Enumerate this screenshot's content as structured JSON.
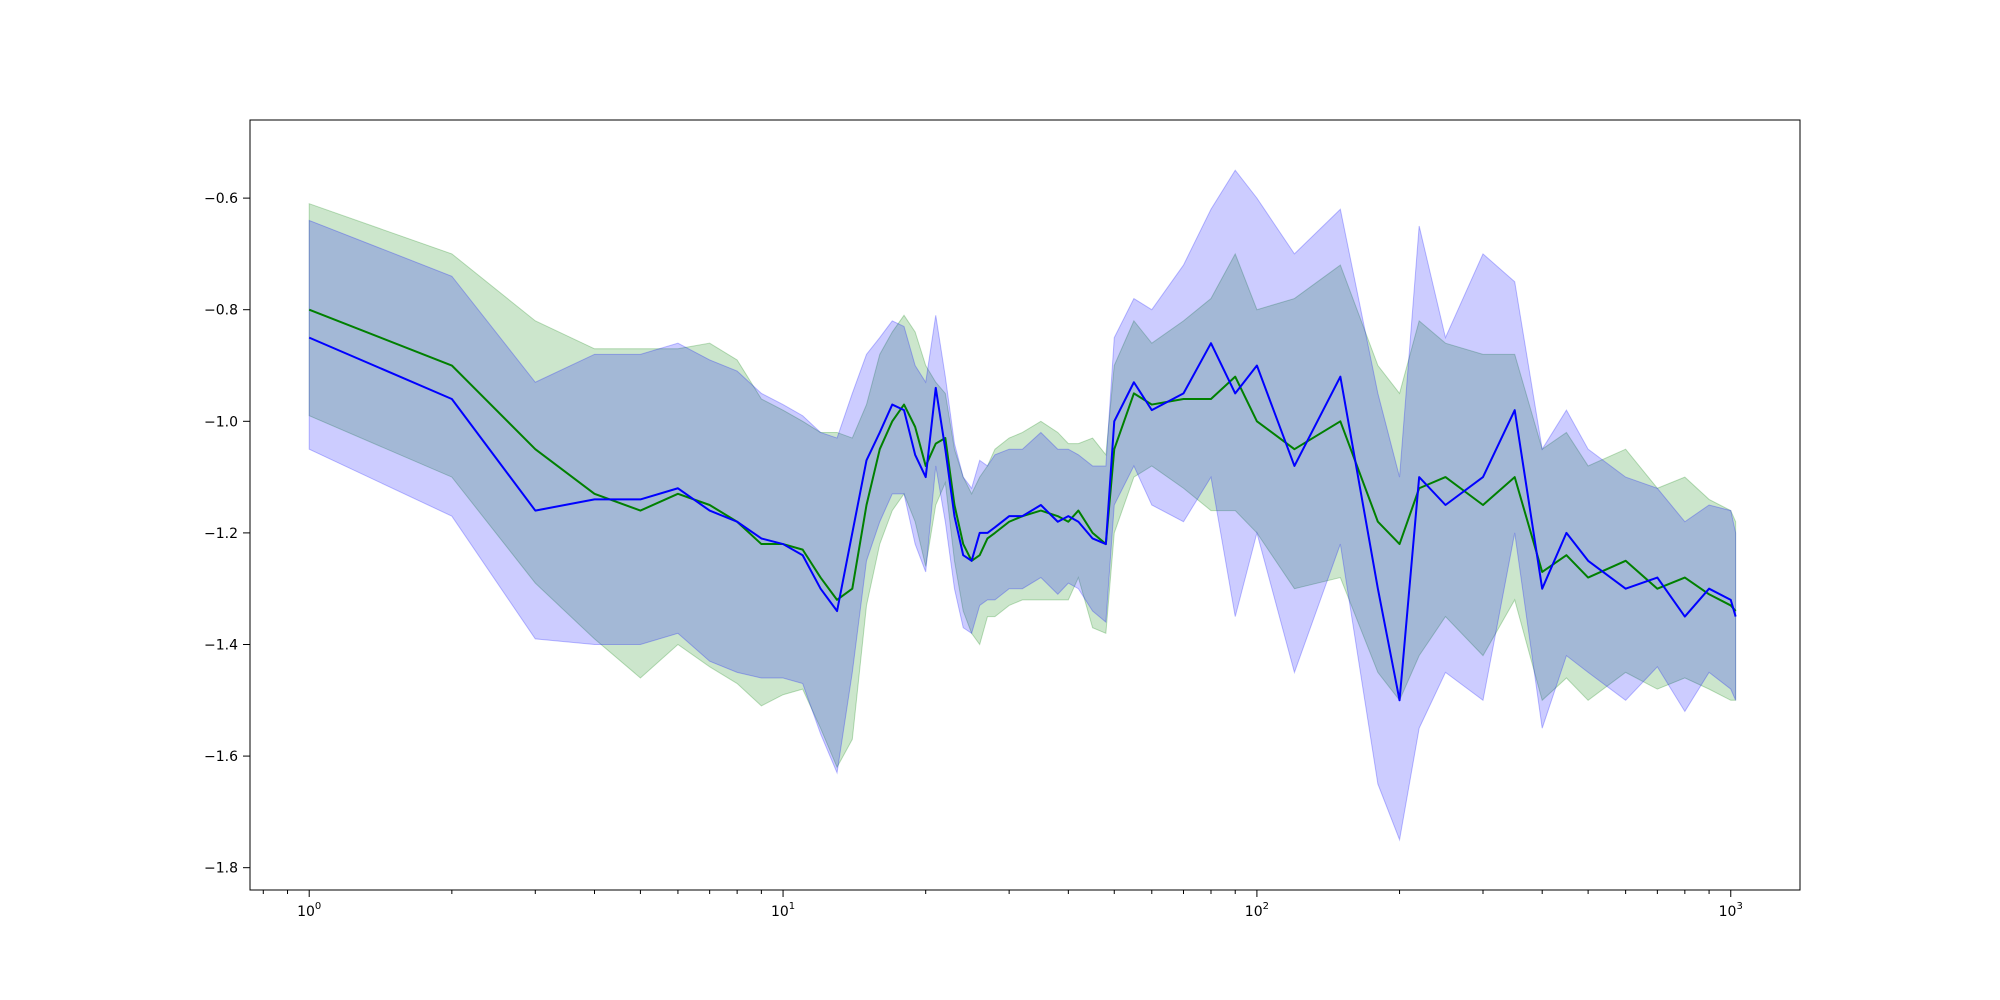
{
  "chart_data": {
    "type": "line",
    "title": "",
    "xlabel": "",
    "ylabel": "",
    "x_scale": "log",
    "xlim": [
      0.75,
      1400
    ],
    "ylim": [
      -1.84,
      -0.46
    ],
    "x_ticks": [
      {
        "value": 1,
        "base": "10",
        "exp": "0"
      },
      {
        "value": 10,
        "base": "10",
        "exp": "1"
      },
      {
        "value": 100,
        "base": "10",
        "exp": "2"
      },
      {
        "value": 1000,
        "base": "10",
        "exp": "3"
      }
    ],
    "y_ticks": [
      {
        "value": -0.6,
        "label": "−0.6"
      },
      {
        "value": -0.8,
        "label": "−0.8"
      },
      {
        "value": -1.0,
        "label": "−1.0"
      },
      {
        "value": -1.2,
        "label": "−1.2"
      },
      {
        "value": -1.4,
        "label": "−1.4"
      },
      {
        "value": -1.6,
        "label": "−1.6"
      },
      {
        "value": -1.8,
        "label": "−1.8"
      }
    ],
    "grid": false,
    "legend": "none",
    "series": [
      {
        "color": "#008000",
        "band_opacity": 0.2,
        "x": [
          1,
          2,
          3,
          4,
          5,
          6,
          7,
          8,
          9,
          10,
          11,
          12,
          13,
          14,
          15,
          16,
          17,
          18,
          19,
          20,
          21,
          22,
          23,
          24,
          25,
          26,
          27,
          28,
          30,
          32,
          35,
          38,
          40,
          42,
          45,
          48,
          50,
          55,
          60,
          70,
          80,
          90,
          100,
          120,
          150,
          180,
          200,
          220,
          250,
          300,
          350,
          400,
          450,
          500,
          600,
          700,
          800,
          900,
          1000,
          1024
        ],
        "mean": [
          -0.8,
          -0.9,
          -1.05,
          -1.13,
          -1.16,
          -1.13,
          -1.15,
          -1.18,
          -1.22,
          -1.22,
          -1.23,
          -1.28,
          -1.32,
          -1.3,
          -1.15,
          -1.05,
          -1.0,
          -0.97,
          -1.01,
          -1.08,
          -1.04,
          -1.03,
          -1.15,
          -1.22,
          -1.25,
          -1.24,
          -1.21,
          -1.2,
          -1.18,
          -1.17,
          -1.16,
          -1.17,
          -1.18,
          -1.16,
          -1.2,
          -1.22,
          -1.05,
          -0.95,
          -0.97,
          -0.96,
          -0.96,
          -0.92,
          -1.0,
          -1.05,
          -1.0,
          -1.18,
          -1.22,
          -1.12,
          -1.1,
          -1.15,
          -1.1,
          -1.27,
          -1.24,
          -1.28,
          -1.25,
          -1.3,
          -1.28,
          -1.31,
          -1.33,
          -1.34
        ],
        "upper": [
          -0.61,
          -0.7,
          -0.82,
          -0.87,
          -0.87,
          -0.87,
          -0.86,
          -0.89,
          -0.96,
          -0.98,
          -1.0,
          -1.02,
          -1.02,
          -1.03,
          -0.97,
          -0.88,
          -0.84,
          -0.81,
          -0.84,
          -0.9,
          -0.93,
          -0.95,
          -1.05,
          -1.1,
          -1.13,
          -1.1,
          -1.08,
          -1.05,
          -1.03,
          -1.02,
          -1.0,
          -1.02,
          -1.04,
          -1.04,
          -1.03,
          -1.06,
          -0.9,
          -0.82,
          -0.86,
          -0.82,
          -0.78,
          -0.7,
          -0.8,
          -0.78,
          -0.72,
          -0.9,
          -0.95,
          -0.82,
          -0.86,
          -0.88,
          -0.88,
          -1.05,
          -1.02,
          -1.08,
          -1.05,
          -1.12,
          -1.1,
          -1.14,
          -1.16,
          -1.18
        ],
        "lower": [
          -0.99,
          -1.1,
          -1.29,
          -1.39,
          -1.46,
          -1.4,
          -1.44,
          -1.47,
          -1.51,
          -1.49,
          -1.48,
          -1.55,
          -1.62,
          -1.57,
          -1.33,
          -1.22,
          -1.16,
          -1.13,
          -1.18,
          -1.26,
          -1.15,
          -1.11,
          -1.25,
          -1.34,
          -1.38,
          -1.4,
          -1.35,
          -1.35,
          -1.33,
          -1.32,
          -1.32,
          -1.32,
          -1.32,
          -1.28,
          -1.37,
          -1.38,
          -1.2,
          -1.1,
          -1.08,
          -1.12,
          -1.16,
          -1.16,
          -1.2,
          -1.3,
          -1.28,
          -1.45,
          -1.5,
          -1.42,
          -1.35,
          -1.42,
          -1.32,
          -1.5,
          -1.46,
          -1.5,
          -1.45,
          -1.48,
          -1.46,
          -1.48,
          -1.5,
          -1.5
        ]
      },
      {
        "color": "#0000ff",
        "band_opacity": 0.2,
        "x": [
          1,
          2,
          3,
          4,
          5,
          6,
          7,
          8,
          9,
          10,
          11,
          12,
          13,
          14,
          15,
          16,
          17,
          18,
          19,
          20,
          21,
          22,
          23,
          24,
          25,
          26,
          27,
          28,
          30,
          32,
          35,
          38,
          40,
          42,
          45,
          48,
          50,
          55,
          60,
          70,
          80,
          90,
          100,
          120,
          150,
          180,
          200,
          220,
          250,
          300,
          350,
          400,
          450,
          500,
          600,
          700,
          800,
          900,
          1000,
          1024
        ],
        "mean": [
          -0.85,
          -0.96,
          -1.16,
          -1.14,
          -1.14,
          -1.12,
          -1.16,
          -1.18,
          -1.21,
          -1.22,
          -1.24,
          -1.3,
          -1.34,
          -1.2,
          -1.07,
          -1.02,
          -0.97,
          -0.98,
          -1.06,
          -1.1,
          -0.94,
          -1.05,
          -1.17,
          -1.24,
          -1.25,
          -1.2,
          -1.2,
          -1.19,
          -1.17,
          -1.17,
          -1.15,
          -1.18,
          -1.17,
          -1.18,
          -1.21,
          -1.22,
          -1.0,
          -0.93,
          -0.98,
          -0.95,
          -0.86,
          -0.95,
          -0.9,
          -1.08,
          -0.92,
          -1.3,
          -1.5,
          -1.1,
          -1.15,
          -1.1,
          -0.98,
          -1.3,
          -1.2,
          -1.25,
          -1.3,
          -1.28,
          -1.35,
          -1.3,
          -1.32,
          -1.35
        ],
        "upper": [
          -0.64,
          -0.74,
          -0.93,
          -0.88,
          -0.88,
          -0.86,
          -0.89,
          -0.91,
          -0.95,
          -0.97,
          -0.99,
          -1.02,
          -1.03,
          -0.95,
          -0.88,
          -0.85,
          -0.82,
          -0.83,
          -0.9,
          -0.93,
          -0.81,
          -0.92,
          -1.04,
          -1.1,
          -1.12,
          -1.07,
          -1.08,
          -1.06,
          -1.05,
          -1.05,
          -1.02,
          -1.05,
          -1.05,
          -1.06,
          -1.08,
          -1.08,
          -0.85,
          -0.78,
          -0.8,
          -0.72,
          -0.62,
          -0.55,
          -0.6,
          -0.7,
          -0.62,
          -0.95,
          -1.1,
          -0.65,
          -0.85,
          -0.7,
          -0.75,
          -1.05,
          -0.98,
          -1.05,
          -1.1,
          -1.12,
          -1.18,
          -1.15,
          -1.16,
          -1.2
        ],
        "lower": [
          -1.05,
          -1.17,
          -1.39,
          -1.4,
          -1.4,
          -1.38,
          -1.43,
          -1.45,
          -1.46,
          -1.46,
          -1.47,
          -1.56,
          -1.63,
          -1.45,
          -1.25,
          -1.18,
          -1.13,
          -1.13,
          -1.22,
          -1.27,
          -1.08,
          -1.18,
          -1.3,
          -1.37,
          -1.38,
          -1.33,
          -1.32,
          -1.32,
          -1.3,
          -1.3,
          -1.28,
          -1.31,
          -1.29,
          -1.3,
          -1.34,
          -1.36,
          -1.15,
          -1.08,
          -1.15,
          -1.18,
          -1.1,
          -1.35,
          -1.2,
          -1.45,
          -1.22,
          -1.65,
          -1.75,
          -1.55,
          -1.45,
          -1.5,
          -1.2,
          -1.55,
          -1.42,
          -1.45,
          -1.5,
          -1.44,
          -1.52,
          -1.45,
          -1.48,
          -1.5
        ]
      }
    ]
  }
}
